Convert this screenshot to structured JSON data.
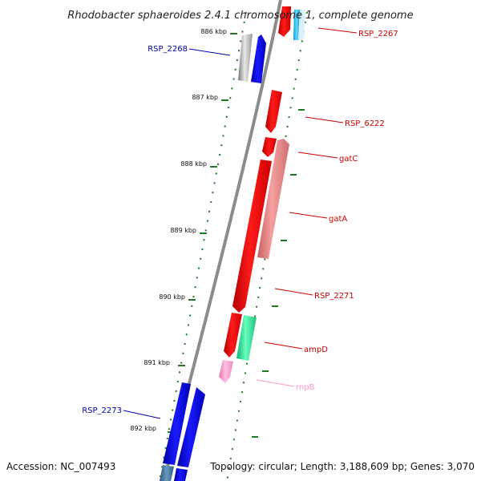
{
  "title": "Rhodobacter sphaeroides 2.4.1 chromosome 1, complete genome",
  "footer": {
    "accession": "Accession: NC_007493",
    "summary": "Topology: circular; Length: 3,188,609 bp; Genes: 3,070"
  },
  "ticks": [
    "886 kbp",
    "887 kbp",
    "888 kbp",
    "889 kbp",
    "890 kbp",
    "891 kbp",
    "892 kbp"
  ],
  "gene_labels": {
    "rsp_2267": "RSP_2267",
    "rsp_2268": "RSP_2268",
    "rsp_6222": "RSP_6222",
    "gatc": "gatC",
    "gata": "gatA",
    "rsp_2271": "RSP_2271",
    "ampd": "ampD",
    "rnpb": "rnpB",
    "rsp_2273": "RSP_2273"
  },
  "colors": {
    "backbone": "#8c8c8c",
    "tick": "#1f7a1f",
    "red_gene": "#ff0000",
    "red_label": "#cc0000",
    "blue_gene": "#0000ee",
    "blue_label": "#0000aa",
    "pink_light": "#f08080",
    "mint": "#33dd99",
    "rna": "#ff99cc",
    "cyan": "#33ccff",
    "gray": "#aaaaaa"
  }
}
